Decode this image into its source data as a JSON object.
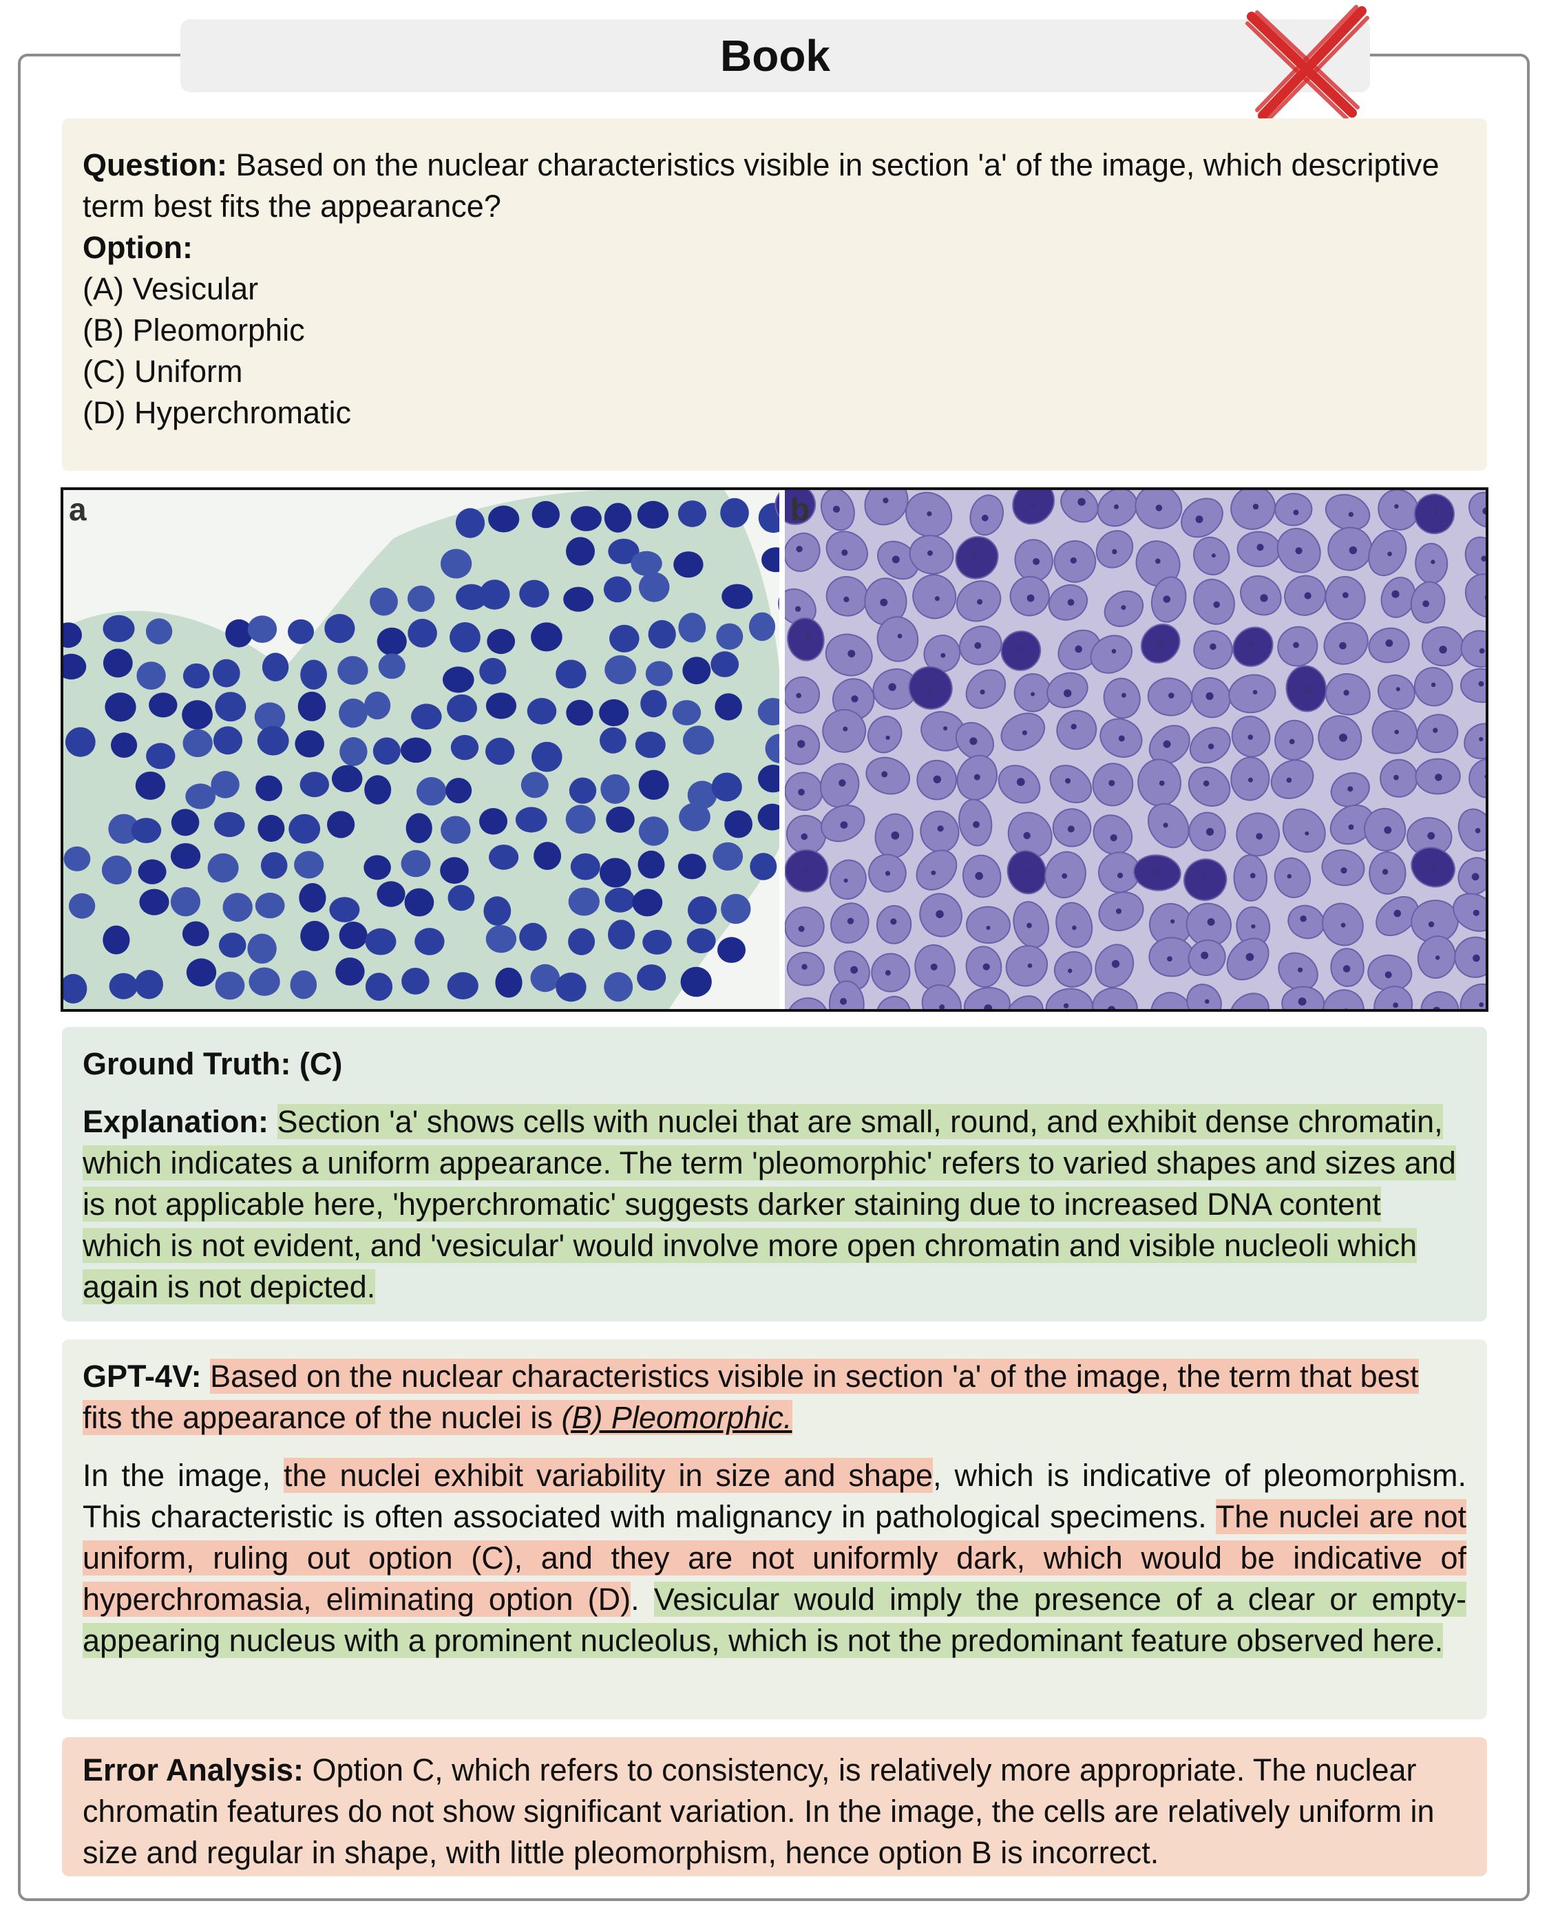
{
  "header": {
    "title": "Book",
    "status_icon": "red-cross-mark",
    "status_color": "#d42a2a"
  },
  "question": {
    "label": "Question:",
    "text": "Based on the nuclear characteristics visible in section 'a' of the image, which descriptive term best fits the appearance?",
    "option_label": "Option:",
    "options": [
      "(A) Vesicular",
      "(B) Pleomorphic",
      "(C) Uniform",
      "(D) Hyperchromatic"
    ]
  },
  "figure": {
    "panel_a_label": "a",
    "panel_b_label": "b"
  },
  "ground_truth": {
    "label": "Ground Truth: (C)",
    "explanation_label": "Explanation:",
    "explanation": "Section 'a' shows cells with nuclei that are small, round, and exhibit dense chromatin, which indicates a uniform appearance. The term 'pleomorphic' refers to varied shapes and sizes and is not applicable here, 'hyperchromatic' suggests darker staining due to increased DNA content which is not evident, and 'vesicular' would involve more open chromatin and visible nucleoli which again is not depicted."
  },
  "gpt4v": {
    "label": "GPT-4V:",
    "p1": "Based on the nuclear characteristics visible in section 'a' of the image, the term that best fits the appearance of the nuclei is ",
    "p1_pick": "(B) Pleomorphic.",
    "p2_a": "In the image, ",
    "p2_b": "the nuclei exhibit variability in size and shape",
    "p2_c": ", which is indicative of pleomorphism. This characteristic is often associated with malignancy in pathological specimens. ",
    "p2_d": "The nuclei are not uniform, ruling out option (C), and they are not uniformly dark, which would be indicative of hyperchromasia, eliminating option (D)",
    "p2_e": ". ",
    "p2_f": "Vesicular would imply the presence of a clear or empty-appearing nucleus with a prominent nucleolus, which is not the predominant feature observed here."
  },
  "error_analysis": {
    "label": "Error Analysis:",
    "text": "Option C, which refers to consistency, is relatively more appropriate. The nuclear chromatin features do not show significant variation. In the image, the cells are relatively uniform in size and regular in shape, with little pleomorphism, hence option B is incorrect."
  },
  "colors": {
    "question_bg": "#f7f2e6",
    "ground_truth_bg": "#e4ece6",
    "gpt_bg": "#edf0e6",
    "error_bg": "#f6d9c8",
    "highlight_green": "#cbe0b4",
    "highlight_red": "#f6c6b4"
  }
}
